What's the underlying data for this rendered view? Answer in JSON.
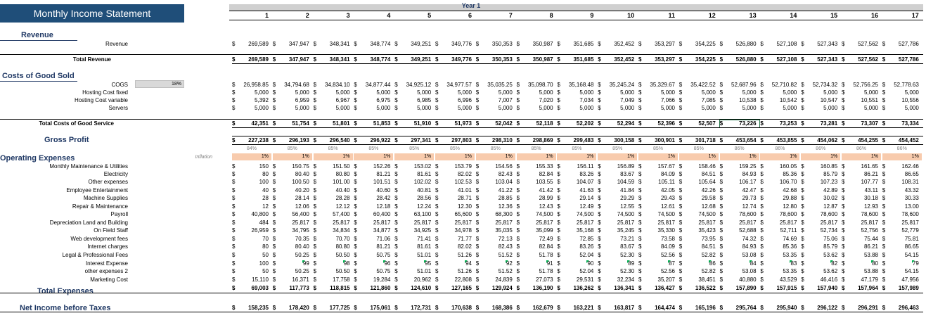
{
  "title": "Monthly Income Statement",
  "year_label": "Year 1",
  "columns": [
    "1",
    "2",
    "3",
    "4",
    "5",
    "6",
    "7",
    "8",
    "9",
    "10",
    "11",
    "12",
    "13",
    "14",
    "15",
    "16",
    "17"
  ],
  "sections": {
    "revenue": "Revenue",
    "costs": "Costs of Good Sold",
    "gross_profit": "Gross Profit",
    "opex": "Operating Expenses",
    "total_expenses": "Total Expenses",
    "net_income": "Net Income before Taxes"
  },
  "cogs_input": "18%",
  "inflation_label": "Inflation",
  "rows": [
    {
      "key": "revenue",
      "label": "Revenue",
      "style": "normal",
      "values": [
        "269,589",
        "347,947",
        "348,341",
        "348,774",
        "349,251",
        "349,776",
        "350,353",
        "350,987",
        "351,685",
        "352,452",
        "353,297",
        "354,225",
        "526,880",
        "527,108",
        "527,343",
        "527,562",
        "527,786"
      ]
    },
    {
      "key": "total_revenue",
      "label": "Total Revenue",
      "style": "bold",
      "values": [
        "269,589",
        "347,947",
        "348,341",
        "348,774",
        "349,251",
        "349,776",
        "350,353",
        "350,987",
        "351,685",
        "352,452",
        "353,297",
        "354,225",
        "526,880",
        "527,108",
        "527,343",
        "527,562",
        "527,786"
      ]
    },
    {
      "key": "cogs",
      "label": "COGS",
      "style": "normal",
      "values": [
        "26,958.85",
        "34,794.68",
        "34,834.10",
        "34,877.44",
        "34,925.12",
        "34,977.57",
        "35,035.25",
        "35,098.70",
        "35,168.48",
        "35,245.24",
        "35,329.67",
        "35,422.52",
        "52,687.96",
        "52,710.82",
        "52,734.32",
        "52,756.25",
        "52,778.63"
      ]
    },
    {
      "key": "hosting_fixed",
      "label": "Hosting Cost fixed",
      "style": "normal",
      "values": [
        "5,000",
        "5,000",
        "5,000",
        "5,000",
        "5,000",
        "5,000",
        "5,000",
        "5,000",
        "5,000",
        "5,000",
        "5,000",
        "5,000",
        "5,000",
        "5,000",
        "5,000",
        "5,000",
        "5,000"
      ]
    },
    {
      "key": "hosting_variable",
      "label": "Hosting Cost variable",
      "style": "normal",
      "values": [
        "5,392",
        "6,959",
        "6,967",
        "6,975",
        "6,985",
        "6,996",
        "7,007",
        "7,020",
        "7,034",
        "7,049",
        "7,066",
        "7,085",
        "10,538",
        "10,542",
        "10,547",
        "10,551",
        "10,556"
      ]
    },
    {
      "key": "servers",
      "label": "Servers",
      "style": "normal",
      "values": [
        "5,000",
        "5,000",
        "5,000",
        "5,000",
        "5,000",
        "5,000",
        "5,000",
        "5,000",
        "5,000",
        "5,000",
        "5,000",
        "5,000",
        "5,000",
        "5,000",
        "5,000",
        "5,000",
        "5,000"
      ]
    },
    {
      "key": "total_cogs",
      "label": "Total Costs of Good Service",
      "style": "bold",
      "values": [
        "42,351",
        "51,754",
        "51,801",
        "51,853",
        "51,910",
        "51,973",
        "52,042",
        "52,118",
        "52,202",
        "52,294",
        "52,396",
        "52,507",
        "73,226",
        "73,253",
        "73,281",
        "73,307",
        "73,334"
      ]
    },
    {
      "key": "gross_profit",
      "label": "",
      "style": "bold",
      "values": [
        "227,238",
        "296,193",
        "296,540",
        "296,922",
        "297,341",
        "297,803",
        "298,310",
        "298,869",
        "299,483",
        "300,158",
        "300,901",
        "301,718",
        "453,654",
        "453,855",
        "454,062",
        "454,255",
        "454,452"
      ]
    },
    {
      "key": "gp_pct",
      "label": "",
      "style": "pct",
      "values": [
        "84%",
        "85%",
        "85%",
        "85%",
        "85%",
        "85%",
        "85%",
        "85%",
        "85%",
        "85%",
        "85%",
        "85%",
        "86%",
        "86%",
        "86%",
        "86%",
        "86%"
      ]
    },
    {
      "key": "inflation",
      "label": "",
      "style": "infl",
      "values": [
        "1%",
        "1%",
        "1%",
        "1%",
        "1%",
        "1%",
        "1%",
        "1%",
        "1%",
        "1%",
        "1%",
        "1%",
        "1%",
        "1%",
        "1%",
        "1%",
        "1%"
      ]
    },
    {
      "key": "maintenance",
      "label": "Monthly Maintenance & Utilities",
      "style": "normal",
      "values": [
        "150",
        "150.75",
        "151.50",
        "152.26",
        "153.02",
        "153.79",
        "154.56",
        "155.33",
        "156.11",
        "156.89",
        "157.67",
        "158.46",
        "159.25",
        "160.05",
        "160.85",
        "161.65",
        "162.46"
      ]
    },
    {
      "key": "electricity",
      "label": "Electricity",
      "style": "normal",
      "values": [
        "80",
        "80.40",
        "80.80",
        "81.21",
        "81.61",
        "82.02",
        "82.43",
        "82.84",
        "83.26",
        "83.67",
        "84.09",
        "84.51",
        "84.93",
        "85.36",
        "85.79",
        "86.21",
        "86.65"
      ]
    },
    {
      "key": "other_exp",
      "label": "Other expenses",
      "style": "normal",
      "values": [
        "100",
        "100.50",
        "101.00",
        "101.51",
        "102.02",
        "102.53",
        "103.04",
        "103.55",
        "104.07",
        "104.59",
        "105.11",
        "105.64",
        "106.17",
        "106.70",
        "107.23",
        "107.77",
        "108.31"
      ]
    },
    {
      "key": "entertainment",
      "label": "Employee Entertainment",
      "style": "normal",
      "values": [
        "40",
        "40.20",
        "40.40",
        "40.60",
        "40.81",
        "41.01",
        "41.22",
        "41.42",
        "41.63",
        "41.84",
        "42.05",
        "42.26",
        "42.47",
        "42.68",
        "42.89",
        "43.11",
        "43.32"
      ]
    },
    {
      "key": "machine",
      "label": "Machine Supplies",
      "style": "normal",
      "values": [
        "28",
        "28.14",
        "28.28",
        "28.42",
        "28.56",
        "28.71",
        "28.85",
        "28.99",
        "29.14",
        "29.29",
        "29.43",
        "29.58",
        "29.73",
        "29.88",
        "30.02",
        "30.18",
        "30.33"
      ]
    },
    {
      "key": "repair",
      "label": "Repair & Maintenance",
      "style": "normal",
      "values": [
        "12",
        "12.06",
        "12.12",
        "12.18",
        "12.24",
        "12.30",
        "12.36",
        "12.43",
        "12.49",
        "12.55",
        "12.61",
        "12.68",
        "12.74",
        "12.80",
        "12.87",
        "12.93",
        "13.00"
      ]
    },
    {
      "key": "payroll",
      "label": "Payroll",
      "style": "normal",
      "values": [
        "40,800",
        "56,400",
        "57,400",
        "60,400",
        "63,100",
        "65,600",
        "68,300",
        "74,500",
        "74,500",
        "74,500",
        "74,500",
        "74,500",
        "78,600",
        "78,600",
        "78,600",
        "78,600",
        "78,600"
      ]
    },
    {
      "key": "depreciation",
      "label": "Depreciation Land and Building",
      "style": "normal",
      "values": [
        "484",
        "25,817",
        "25,817",
        "25,817",
        "25,817",
        "25,817",
        "25,817",
        "25,817",
        "25,817",
        "25,817",
        "25,817",
        "25,817",
        "25,817",
        "25,817",
        "25,817",
        "25,817",
        "25,817"
      ]
    },
    {
      "key": "field_staff",
      "label": "On Field Staff",
      "style": "normal",
      "values": [
        "26,959",
        "34,795",
        "34,834",
        "34,877",
        "34,925",
        "34,978",
        "35,035",
        "35,099",
        "35,168",
        "35,245",
        "35,330",
        "35,423",
        "52,688",
        "52,711",
        "52,734",
        "52,756",
        "52,779"
      ]
    },
    {
      "key": "web_dev",
      "label": "Web development fees",
      "style": "normal",
      "values": [
        "70",
        "70.35",
        "70.70",
        "71.06",
        "71.41",
        "71.77",
        "72.13",
        "72.49",
        "72.85",
        "73.21",
        "73.58",
        "73.95",
        "74.32",
        "74.69",
        "75.06",
        "75.44",
        "75.81"
      ]
    },
    {
      "key": "internet",
      "label": "Internet charges",
      "style": "normal",
      "values": [
        "80",
        "80.40",
        "80.80",
        "81.21",
        "81.61",
        "82.02",
        "82.43",
        "82.84",
        "83.26",
        "83.67",
        "84.09",
        "84.51",
        "84.93",
        "85.36",
        "85.79",
        "86.21",
        "86.65"
      ]
    },
    {
      "key": "legal",
      "label": "Legal & Professional Fees",
      "style": "normal",
      "values": [
        "50",
        "50.25",
        "50.50",
        "50.75",
        "51.01",
        "51.26",
        "51.52",
        "51.78",
        "52.04",
        "52.30",
        "52.56",
        "52.82",
        "53.08",
        "53.35",
        "53.62",
        "53.88",
        "54.15"
      ]
    },
    {
      "key": "interest",
      "label": "Interest Expense",
      "style": "tri",
      "values": [
        "100",
        "99",
        "98",
        "96",
        "95",
        "94",
        "92",
        "91",
        "90",
        "89",
        "87",
        "86",
        "84",
        "83",
        "82",
        "80",
        "79"
      ]
    },
    {
      "key": "other_exp2",
      "label": "other expenses 2",
      "style": "normal",
      "values": [
        "50",
        "50.25",
        "50.50",
        "50.75",
        "51.01",
        "51.26",
        "51.52",
        "51.78",
        "52.04",
        "52.30",
        "52.56",
        "52.82",
        "53.08",
        "53.35",
        "53.62",
        "53.88",
        "54.15"
      ]
    },
    {
      "key": "marketing",
      "label": "Marketing Cost",
      "style": "normal",
      "values": [
        "15,110",
        "16,371",
        "17,758",
        "19,284",
        "20,962",
        "22,808",
        "24,839",
        "27,073",
        "29,531",
        "32,234",
        "35,207",
        "38,451",
        "40,880",
        "43,529",
        "46,416",
        "47,179",
        "47,956"
      ]
    },
    {
      "key": "total_expenses",
      "label": "",
      "style": "bold",
      "values": [
        "69,003",
        "117,773",
        "118,815",
        "121,860",
        "124,610",
        "127,165",
        "129,924",
        "136,190",
        "136,262",
        "136,341",
        "136,427",
        "136,522",
        "157,890",
        "157,915",
        "157,940",
        "157,964",
        "157,989"
      ]
    },
    {
      "key": "net_income",
      "label": "",
      "style": "bold",
      "values": [
        "158,235",
        "178,420",
        "177,725",
        "175,061",
        "172,731",
        "170,638",
        "168,386",
        "162,679",
        "163,221",
        "163,817",
        "164,474",
        "165,196",
        "295,764",
        "295,940",
        "296,122",
        "296,291",
        "296,463"
      ]
    }
  ],
  "colors": {
    "header": "#1f4e79",
    "section": "#1f3864",
    "inflation": "#f8cbad",
    "selected": "#217346"
  }
}
